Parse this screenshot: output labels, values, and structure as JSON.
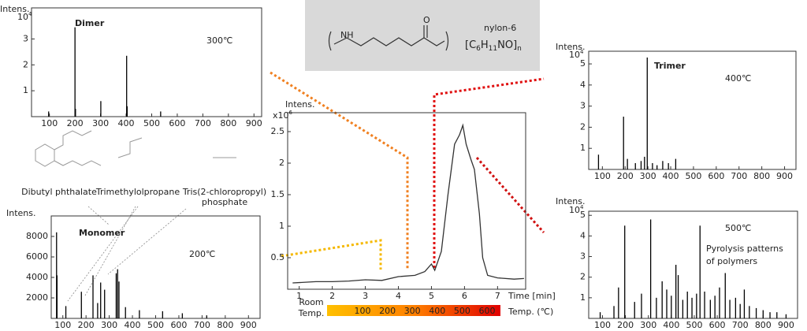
{
  "chart_data": [
    {
      "type": "line",
      "y_label": "Intens.",
      "y_scale": [
        "x10",
        "6"
      ],
      "x_label": "Time [min]",
      "x": [
        0.8,
        1.5,
        2.0,
        2.5,
        3.0,
        3.5,
        4.0,
        4.5,
        4.8,
        5.0,
        5.1,
        5.3,
        5.5,
        5.7,
        5.85,
        5.95,
        6.05,
        6.2,
        6.3,
        6.45,
        6.55,
        6.7,
        7.0,
        7.5,
        7.8
      ],
      "series": [
        {
          "color": "#333333",
          "values": [
            0.1,
            0.12,
            0.12,
            0.13,
            0.15,
            0.14,
            0.2,
            0.22,
            0.28,
            0.4,
            0.3,
            0.6,
            1.5,
            2.3,
            2.45,
            2.6,
            2.3,
            2.05,
            1.9,
            1.2,
            0.5,
            0.22,
            0.18,
            0.16,
            0.17
          ]
        }
      ],
      "xlim": [
        0.65,
        7.85
      ],
      "xticks": [
        1,
        2,
        3,
        4,
        5,
        6,
        7
      ],
      "ylim": [
        0,
        2.8
      ],
      "yticks": [
        0.5,
        1.0,
        1.5,
        2.0,
        2.5
      ],
      "temp_scale": {
        "label_lines": [
          "Room",
          "Temp."
        ],
        "ticks": [
          100,
          200,
          300,
          400,
          500,
          600
        ],
        "unit": "Temp. (℃)"
      }
    },
    {
      "type": "spectrum",
      "title": "Dimer",
      "temperature": "300℃",
      "y_label": "Intens.",
      "y_scale": [
        "10",
        "4"
      ],
      "color": "#000000",
      "x": [
        97,
        200,
        202,
        301,
        402,
        404,
        535
      ],
      "values": [
        0.2,
        3.45,
        0.3,
        0.6,
        2.35,
        0.4,
        0.2
      ],
      "xlim": [
        30,
        930
      ],
      "xticks": [
        100,
        200,
        300,
        400,
        500,
        600,
        700,
        800,
        900
      ],
      "ylim": [
        0,
        4.2
      ],
      "yticks": [
        1,
        2,
        3
      ]
    },
    {
      "type": "spectrum",
      "title": "Monomer",
      "temperature": "200℃",
      "y_label": "Intens.",
      "color": "#000000",
      "x": [
        73,
        75,
        113,
        180,
        230,
        250,
        263,
        280,
        330,
        336,
        342,
        370,
        430,
        530,
        615,
        720
      ],
      "values": [
        8400,
        4200,
        1200,
        2600,
        4200,
        1500,
        3500,
        2800,
        4400,
        4800,
        3600,
        1100,
        800,
        700,
        500,
        300
      ],
      "xlim": [
        50,
        950
      ],
      "xticks": [
        100,
        200,
        300,
        400,
        500,
        600,
        700,
        800,
        900
      ],
      "ylim": [
        0,
        10000
      ],
      "yticks": [
        2000,
        4000,
        6000,
        8000
      ]
    },
    {
      "type": "spectrum",
      "title": "Trimer",
      "temperature": "400℃",
      "y_label": "Intens.",
      "y_scale": [
        "10",
        "4"
      ],
      "color": "#000000",
      "x": [
        83,
        193,
        210,
        245,
        270,
        285,
        297,
        320,
        340,
        365,
        390,
        422
      ],
      "values": [
        0.7,
        2.5,
        0.5,
        0.3,
        0.4,
        0.6,
        5.3,
        0.3,
        0.2,
        0.4,
        0.3,
        0.5
      ],
      "xlim": [
        40,
        950
      ],
      "xticks": [
        100,
        200,
        300,
        400,
        500,
        600,
        700,
        800,
        900
      ],
      "ylim": [
        0,
        5.6
      ],
      "yticks": [
        1,
        2,
        3,
        4,
        5
      ]
    },
    {
      "type": "spectrum",
      "temperature": "500℃",
      "annotation_lines": [
        "Pyrolysis patterns",
        "of polymers"
      ],
      "y_label": "Intens.",
      "y_scale": [
        "10",
        "4"
      ],
      "color": "#000000",
      "x": [
        90,
        150,
        170,
        197,
        240,
        270,
        310,
        335,
        360,
        380,
        400,
        420,
        430,
        450,
        470,
        490,
        510,
        525,
        545,
        570,
        590,
        610,
        635,
        655,
        680,
        700,
        718,
        740,
        770,
        800,
        830,
        860,
        900
      ],
      "values": [
        0.3,
        0.6,
        1.5,
        4.5,
        0.8,
        1.2,
        4.8,
        1.0,
        1.8,
        1.4,
        1.1,
        2.6,
        2.1,
        0.9,
        1.3,
        1.0,
        1.2,
        4.5,
        1.3,
        0.9,
        1.1,
        1.5,
        2.2,
        0.9,
        1.0,
        0.7,
        1.4,
        0.6,
        0.5,
        0.4,
        0.3,
        0.3,
        0.2
      ],
      "xlim": [
        40,
        950
      ],
      "xticks": [
        100,
        200,
        300,
        400,
        500,
        600,
        700,
        800,
        900
      ],
      "ylim": [
        0,
        5.2
      ],
      "yticks": [
        1,
        2,
        3,
        4,
        5
      ]
    }
  ],
  "polymer": {
    "name": "nylon-6",
    "formula": [
      "[C",
      "6",
      "H",
      "11",
      "NO]",
      "n"
    ]
  },
  "molecules": [
    {
      "lines": [
        "Dibutyl phthalate"
      ]
    },
    {
      "lines": [
        "Trimethylolpropane"
      ]
    },
    {
      "lines": [
        "Tris(2-chloropropyl)",
        "phosphate"
      ]
    }
  ]
}
